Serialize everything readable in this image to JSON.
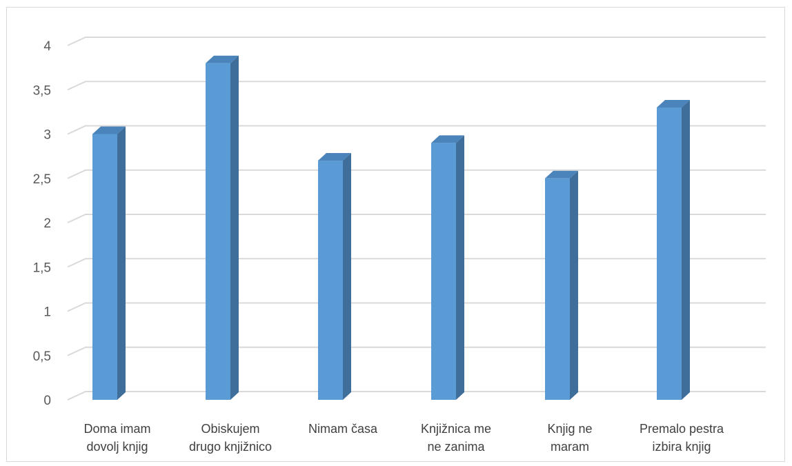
{
  "chart_data": {
    "type": "bar",
    "title": "",
    "xlabel": "",
    "ylabel": "",
    "categories": [
      [
        "Doma imam",
        "dovolj knjig"
      ],
      [
        "Obiskujem",
        "drugo knjižnico"
      ],
      [
        "Nimam časa"
      ],
      [
        "Knjižnica me",
        "ne zanima"
      ],
      [
        "Knjig ne",
        "maram"
      ],
      [
        "Premalo pestra",
        "izbira knjig"
      ]
    ],
    "values": [
      3.0,
      3.8,
      2.7,
      2.9,
      2.5,
      3.3
    ],
    "ylim": [
      0,
      4
    ],
    "yticks": [
      "0",
      "0,5",
      "1",
      "1,5",
      "2",
      "2,5",
      "3",
      "3,5",
      "4"
    ],
    "legend": "none",
    "grid": true,
    "style": "3d-column",
    "colors": {
      "bar_front": "#5b9bd5",
      "bar_side": "#3e6e99",
      "bar_top": "#4a84ba",
      "grid": "#d9d9d9"
    }
  }
}
